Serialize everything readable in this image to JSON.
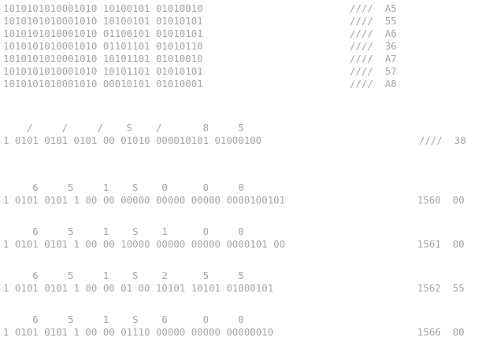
{
  "header_block": {
    "rows": [
      {
        "left": "1010101010001010 10100101 01010010",
        "right": "////  A5"
      },
      {
        "left": "1010101010001010 10100101 01010101",
        "right": "////  55"
      },
      {
        "left": "1010101010001010 01100101 01010101",
        "right": "////  A6"
      },
      {
        "left": "1010101010001010 01101101 01010110",
        "right": "////  36"
      },
      {
        "left": "1010101010001010 10101101 01010010",
        "right": "////  A7"
      },
      {
        "left": "1010101010001010 10101101 01010101",
        "right": "////  57"
      },
      {
        "left": "1010101010001010 00010101 01010001",
        "right": "////  A8"
      }
    ]
  },
  "separator_row": {
    "top": "    /     /     /    S    /       8     5",
    "bottom": "1 0101 0101 0101 00 01010 000010101 01000100",
    "right": "////  38"
  },
  "data_rows": [
    {
      "top": "     6     5     1    S    0      0     0",
      "bottom": "1 0101 0101 1 00 00 00000 00000 00000 0000100101",
      "value": "1560  00"
    },
    {
      "top": "     6     5     1    S    1      0     0",
      "bottom": "1 0101 0101 1 00 00 10000 00000 00000 0000101 00",
      "value": "1561  00"
    },
    {
      "top": "     6     5     1    S    2      5     5",
      "bottom": "1 0101 0101 1 00 00 01 00 10101 10101 01000101",
      "value": "1562  55"
    },
    {
      "top": "     6     5     1    S    6      0     0",
      "bottom": "1 0101 0101 1 00 00 01110 00000 00000 00000010",
      "value": "1566  00"
    }
  ]
}
